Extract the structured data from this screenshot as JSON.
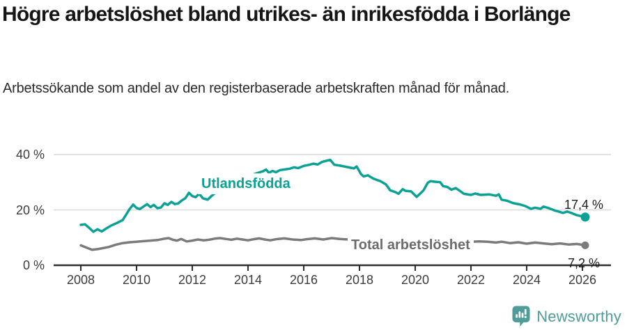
{
  "chart_data": {
    "type": "line",
    "title": "Högre arbetslöshet bland utrikes- än inrikesfödda i Borlänge",
    "subtitle": "Arbetssökande som andel av den registerbaserade arbetskraften månad för månad.",
    "grid": true,
    "legend_position": "inline-labels",
    "x_axis": {
      "ticks": [
        2008,
        2010,
        2012,
        2014,
        2016,
        2018,
        2020,
        2022,
        2024,
        2026
      ],
      "range": [
        2008,
        2026.1
      ]
    },
    "y_axis": {
      "ticks": [
        {
          "value": 0,
          "label": "0 %"
        },
        {
          "value": 20,
          "label": "20 %"
        },
        {
          "value": 40,
          "label": "40 %"
        }
      ],
      "range": [
        0,
        40
      ],
      "unit": "%"
    },
    "series": [
      {
        "name": "Utlandsfödda",
        "color": "#0ca195",
        "label_color": "#0ca195",
        "end_label": "17,4 %",
        "end_value": 17.4,
        "points": [
          [
            2008.0,
            14.6
          ],
          [
            2008.15,
            14.8
          ],
          [
            2008.3,
            13.5
          ],
          [
            2008.45,
            12.1
          ],
          [
            2008.6,
            13.0
          ],
          [
            2008.75,
            12.2
          ],
          [
            2008.9,
            13.2
          ],
          [
            2009.1,
            14.4
          ],
          [
            2009.3,
            15.3
          ],
          [
            2009.5,
            16.3
          ],
          [
            2009.62,
            18.2
          ],
          [
            2009.75,
            20.3
          ],
          [
            2009.88,
            21.9
          ],
          [
            2010.0,
            20.7
          ],
          [
            2010.12,
            20.3
          ],
          [
            2010.25,
            21.2
          ],
          [
            2010.38,
            22.1
          ],
          [
            2010.5,
            21.0
          ],
          [
            2010.62,
            21.8
          ],
          [
            2010.75,
            20.6
          ],
          [
            2010.88,
            20.9
          ],
          [
            2011.0,
            22.4
          ],
          [
            2011.12,
            21.8
          ],
          [
            2011.25,
            22.9
          ],
          [
            2011.38,
            22.1
          ],
          [
            2011.5,
            22.4
          ],
          [
            2011.62,
            23.4
          ],
          [
            2011.75,
            24.2
          ],
          [
            2011.88,
            26.2
          ],
          [
            2012.0,
            25.0
          ],
          [
            2012.12,
            24.6
          ],
          [
            2012.25,
            25.8
          ],
          [
            2012.38,
            24.2
          ],
          [
            2012.55,
            23.7
          ],
          [
            2012.7,
            25.1
          ],
          [
            2012.85,
            26.3
          ],
          [
            2013.1,
            27.4
          ],
          [
            2013.4,
            28.9
          ],
          [
            2013.7,
            30.6
          ],
          [
            2014.0,
            32.1
          ],
          [
            2014.3,
            33.2
          ],
          [
            2014.55,
            34.0
          ],
          [
            2014.65,
            34.6
          ],
          [
            2014.75,
            33.4
          ],
          [
            2014.88,
            34.1
          ],
          [
            2015.0,
            33.6
          ],
          [
            2015.15,
            34.4
          ],
          [
            2015.3,
            34.6
          ],
          [
            2015.5,
            34.9
          ],
          [
            2015.65,
            35.4
          ],
          [
            2015.8,
            35.1
          ],
          [
            2016.0,
            35.9
          ],
          [
            2016.2,
            36.3
          ],
          [
            2016.35,
            36.7
          ],
          [
            2016.5,
            36.4
          ],
          [
            2016.65,
            37.3
          ],
          [
            2016.8,
            37.7
          ],
          [
            2016.95,
            38.1
          ],
          [
            2017.1,
            36.3
          ],
          [
            2017.3,
            36.0
          ],
          [
            2017.55,
            35.5
          ],
          [
            2017.8,
            35.0
          ],
          [
            2017.9,
            35.7
          ],
          [
            2018.05,
            33.0
          ],
          [
            2018.15,
            32.1
          ],
          [
            2018.3,
            32.5
          ],
          [
            2018.5,
            31.3
          ],
          [
            2018.75,
            30.4
          ],
          [
            2018.95,
            29.2
          ],
          [
            2019.1,
            27.1
          ],
          [
            2019.3,
            26.4
          ],
          [
            2019.4,
            25.8
          ],
          [
            2019.55,
            27.5
          ],
          [
            2019.65,
            26.9
          ],
          [
            2019.85,
            26.7
          ],
          [
            2020.05,
            24.7
          ],
          [
            2020.15,
            25.6
          ],
          [
            2020.3,
            27.1
          ],
          [
            2020.45,
            29.8
          ],
          [
            2020.55,
            30.4
          ],
          [
            2020.7,
            30.2
          ],
          [
            2020.9,
            30.0
          ],
          [
            2021.0,
            28.6
          ],
          [
            2021.15,
            28.3
          ],
          [
            2021.3,
            27.3
          ],
          [
            2021.45,
            27.9
          ],
          [
            2021.6,
            26.9
          ],
          [
            2021.75,
            25.8
          ],
          [
            2022.0,
            25.4
          ],
          [
            2022.15,
            25.9
          ],
          [
            2022.35,
            25.4
          ],
          [
            2022.65,
            25.6
          ],
          [
            2022.9,
            25.1
          ],
          [
            2023.0,
            25.6
          ],
          [
            2023.1,
            23.7
          ],
          [
            2023.3,
            23.3
          ],
          [
            2023.5,
            22.5
          ],
          [
            2023.75,
            22.0
          ],
          [
            2023.95,
            21.4
          ],
          [
            2024.15,
            20.4
          ],
          [
            2024.3,
            20.8
          ],
          [
            2024.5,
            20.4
          ],
          [
            2024.6,
            21.2
          ],
          [
            2024.8,
            20.6
          ],
          [
            2025.0,
            19.8
          ],
          [
            2025.15,
            19.4
          ],
          [
            2025.3,
            18.9
          ],
          [
            2025.45,
            19.4
          ],
          [
            2025.6,
            18.9
          ],
          [
            2025.8,
            18.1
          ],
          [
            2026.1,
            17.4
          ]
        ]
      },
      {
        "name": "Total arbetslöshet",
        "color": "#7b7b7b",
        "label_color": "#6b6b6b",
        "end_label": "7,2 %",
        "end_value": 7.2,
        "points": [
          [
            2008.0,
            7.2
          ],
          [
            2008.2,
            6.4
          ],
          [
            2008.4,
            5.6
          ],
          [
            2008.6,
            5.8
          ],
          [
            2008.8,
            6.2
          ],
          [
            2009.0,
            6.6
          ],
          [
            2009.25,
            7.4
          ],
          [
            2009.5,
            8.0
          ],
          [
            2009.75,
            8.3
          ],
          [
            2010.0,
            8.5
          ],
          [
            2010.25,
            8.7
          ],
          [
            2010.5,
            8.9
          ],
          [
            2010.75,
            9.1
          ],
          [
            2011.0,
            9.6
          ],
          [
            2011.15,
            9.8
          ],
          [
            2011.3,
            9.2
          ],
          [
            2011.45,
            8.9
          ],
          [
            2011.6,
            9.5
          ],
          [
            2011.8,
            8.6
          ],
          [
            2012.0,
            8.9
          ],
          [
            2012.2,
            9.3
          ],
          [
            2012.4,
            9.0
          ],
          [
            2012.6,
            9.2
          ],
          [
            2012.8,
            9.6
          ],
          [
            2013.0,
            9.8
          ],
          [
            2013.2,
            9.5
          ],
          [
            2013.4,
            9.2
          ],
          [
            2013.6,
            9.6
          ],
          [
            2013.8,
            9.3
          ],
          [
            2014.0,
            9.0
          ],
          [
            2014.2,
            9.4
          ],
          [
            2014.4,
            9.7
          ],
          [
            2014.6,
            9.3
          ],
          [
            2014.8,
            9.0
          ],
          [
            2015.0,
            9.4
          ],
          [
            2015.3,
            9.7
          ],
          [
            2015.6,
            9.3
          ],
          [
            2015.9,
            9.1
          ],
          [
            2016.1,
            9.4
          ],
          [
            2016.4,
            9.7
          ],
          [
            2016.7,
            9.3
          ],
          [
            2017.0,
            9.8
          ],
          [
            2017.3,
            9.5
          ],
          [
            2017.6,
            9.3
          ],
          [
            2017.9,
            9.5
          ],
          [
            2018.2,
            9.2
          ],
          [
            2018.5,
            9.0
          ],
          [
            2018.8,
            8.8
          ],
          [
            2019.1,
            8.6
          ],
          [
            2019.4,
            8.4
          ],
          [
            2019.7,
            8.6
          ],
          [
            2020.0,
            8.8
          ],
          [
            2020.4,
            9.6
          ],
          [
            2020.7,
            9.4
          ],
          [
            2021.0,
            9.1
          ],
          [
            2021.3,
            8.9
          ],
          [
            2021.6,
            8.7
          ],
          [
            2022.0,
            8.5
          ],
          [
            2022.3,
            8.6
          ],
          [
            2022.6,
            8.5
          ],
          [
            2022.9,
            8.2
          ],
          [
            2023.1,
            8.5
          ],
          [
            2023.4,
            8.0
          ],
          [
            2023.7,
            8.3
          ],
          [
            2024.0,
            7.8
          ],
          [
            2024.3,
            8.2
          ],
          [
            2024.6,
            7.9
          ],
          [
            2024.9,
            7.6
          ],
          [
            2025.2,
            7.9
          ],
          [
            2025.5,
            7.5
          ],
          [
            2025.8,
            7.7
          ],
          [
            2026.1,
            7.2
          ]
        ]
      }
    ],
    "style": {
      "gridline_color": "#dadada",
      "axis_color": "#2e2e2e",
      "tick_label_color": "#3b3b3b"
    }
  },
  "branding": {
    "name": "Newsworthy",
    "color": "#4e9d98",
    "icon": "newsworthy-speech-bubble-bar-chart-icon"
  }
}
